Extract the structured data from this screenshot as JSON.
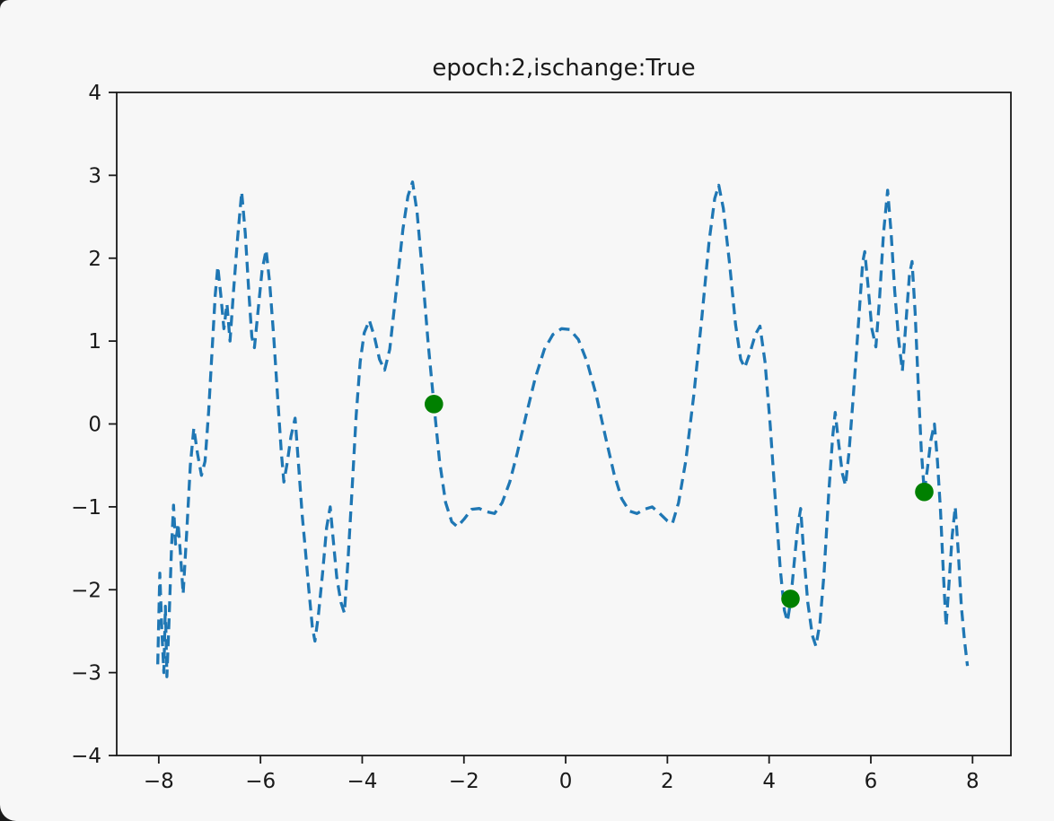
{
  "window": {
    "background": "#f7f7f7",
    "corner_color": "#1b1b1b"
  },
  "chart_data": {
    "type": "line",
    "title": "epoch:2,ischange:True",
    "xlabel": "",
    "ylabel": "",
    "grid": false,
    "legend": null,
    "xlim": [
      -8.827,
      8.754
    ],
    "ylim": [
      -4,
      4
    ],
    "x_ticks": [
      -8,
      -6,
      -4,
      -2,
      0,
      2,
      4,
      6,
      8
    ],
    "y_ticks": [
      -4,
      -3,
      -2,
      -1,
      0,
      1,
      2,
      3,
      4
    ],
    "axis_color": "#1a1a1a",
    "series": [
      {
        "name": "model-prediction-curve",
        "style": "dashed-line",
        "color": "#1f77b4",
        "points": [
          [
            -8.02,
            -2.9
          ],
          [
            -7.98,
            -1.8
          ],
          [
            -7.94,
            -2.5
          ],
          [
            -7.9,
            -3.0
          ],
          [
            -7.87,
            -2.2
          ],
          [
            -7.84,
            -3.05
          ],
          [
            -7.8,
            -2.4
          ],
          [
            -7.75,
            -1.5
          ],
          [
            -7.71,
            -0.98
          ],
          [
            -7.67,
            -1.45
          ],
          [
            -7.62,
            -1.2
          ],
          [
            -7.57,
            -1.6
          ],
          [
            -7.52,
            -2.05
          ],
          [
            -7.45,
            -1.3
          ],
          [
            -7.38,
            -0.5
          ],
          [
            -7.31,
            -0.05
          ],
          [
            -7.24,
            -0.35
          ],
          [
            -7.16,
            -0.62
          ],
          [
            -7.09,
            -0.45
          ],
          [
            -7.02,
            0.15
          ],
          [
            -6.95,
            0.9
          ],
          [
            -6.89,
            1.55
          ],
          [
            -6.84,
            1.9
          ],
          [
            -6.78,
            1.55
          ],
          [
            -6.72,
            1.15
          ],
          [
            -6.66,
            1.45
          ],
          [
            -6.6,
            1.0
          ],
          [
            -6.53,
            1.6
          ],
          [
            -6.45,
            2.25
          ],
          [
            -6.37,
            2.8
          ],
          [
            -6.3,
            2.3
          ],
          [
            -6.23,
            1.6
          ],
          [
            -6.17,
            1.05
          ],
          [
            -6.12,
            0.92
          ],
          [
            -6.05,
            1.35
          ],
          [
            -5.97,
            1.85
          ],
          [
            -5.89,
            2.1
          ],
          [
            -5.82,
            1.7
          ],
          [
            -5.74,
            1.05
          ],
          [
            -5.66,
            0.3
          ],
          [
            -5.59,
            -0.35
          ],
          [
            -5.54,
            -0.7
          ],
          [
            -5.47,
            -0.45
          ],
          [
            -5.4,
            -0.15
          ],
          [
            -5.32,
            0.07
          ],
          [
            -5.25,
            -0.5
          ],
          [
            -5.18,
            -1.1
          ],
          [
            -5.12,
            -1.5
          ],
          [
            -5.05,
            -2.0
          ],
          [
            -4.98,
            -2.45
          ],
          [
            -4.93,
            -2.62
          ],
          [
            -4.86,
            -2.3
          ],
          [
            -4.78,
            -1.8
          ],
          [
            -4.7,
            -1.25
          ],
          [
            -4.63,
            -1.0
          ],
          [
            -4.57,
            -1.4
          ],
          [
            -4.5,
            -1.85
          ],
          [
            -4.42,
            -2.15
          ],
          [
            -4.35,
            -2.28
          ],
          [
            -4.28,
            -1.65
          ],
          [
            -4.2,
            -0.8
          ],
          [
            -4.12,
            0.1
          ],
          [
            -4.04,
            0.75
          ],
          [
            -3.96,
            1.1
          ],
          [
            -3.86,
            1.25
          ],
          [
            -3.76,
            1.05
          ],
          [
            -3.66,
            0.78
          ],
          [
            -3.56,
            0.65
          ],
          [
            -3.46,
            0.9
          ],
          [
            -3.34,
            1.55
          ],
          [
            -3.2,
            2.35
          ],
          [
            -3.1,
            2.75
          ],
          [
            -3.01,
            2.92
          ],
          [
            -2.92,
            2.55
          ],
          [
            -2.82,
            1.85
          ],
          [
            -2.7,
            0.95
          ],
          [
            -2.59,
            0.24
          ],
          [
            -2.48,
            -0.45
          ],
          [
            -2.36,
            -0.95
          ],
          [
            -2.24,
            -1.18
          ],
          [
            -2.13,
            -1.24
          ],
          [
            -2.0,
            -1.15
          ],
          [
            -1.85,
            -1.03
          ],
          [
            -1.7,
            -1.02
          ],
          [
            -1.55,
            -1.06
          ],
          [
            -1.4,
            -1.08
          ],
          [
            -1.25,
            -0.95
          ],
          [
            -1.1,
            -0.7
          ],
          [
            -0.95,
            -0.35
          ],
          [
            -0.78,
            0.1
          ],
          [
            -0.6,
            0.55
          ],
          [
            -0.42,
            0.9
          ],
          [
            -0.25,
            1.08
          ],
          [
            -0.08,
            1.15
          ],
          [
            0.08,
            1.14
          ],
          [
            0.25,
            1.02
          ],
          [
            0.42,
            0.75
          ],
          [
            0.6,
            0.35
          ],
          [
            0.78,
            -0.15
          ],
          [
            0.95,
            -0.6
          ],
          [
            1.1,
            -0.9
          ],
          [
            1.25,
            -1.05
          ],
          [
            1.4,
            -1.08
          ],
          [
            1.55,
            -1.03
          ],
          [
            1.7,
            -1.0
          ],
          [
            1.85,
            -1.08
          ],
          [
            2.0,
            -1.17
          ],
          [
            2.1,
            -1.2
          ],
          [
            2.22,
            -0.95
          ],
          [
            2.36,
            -0.45
          ],
          [
            2.52,
            0.35
          ],
          [
            2.68,
            1.3
          ],
          [
            2.82,
            2.2
          ],
          [
            2.93,
            2.72
          ],
          [
            3.01,
            2.88
          ],
          [
            3.1,
            2.6
          ],
          [
            3.22,
            1.95
          ],
          [
            3.34,
            1.2
          ],
          [
            3.44,
            0.78
          ],
          [
            3.52,
            0.68
          ],
          [
            3.62,
            0.85
          ],
          [
            3.73,
            1.08
          ],
          [
            3.82,
            1.18
          ],
          [
            3.92,
            0.75
          ],
          [
            4.02,
            0.0
          ],
          [
            4.12,
            -0.9
          ],
          [
            4.22,
            -1.75
          ],
          [
            4.3,
            -2.25
          ],
          [
            4.36,
            -2.38
          ],
          [
            4.42,
            -2.15
          ],
          [
            4.49,
            -1.7
          ],
          [
            4.56,
            -1.25
          ],
          [
            4.62,
            -1.02
          ],
          [
            4.68,
            -1.55
          ],
          [
            4.76,
            -2.15
          ],
          [
            4.85,
            -2.55
          ],
          [
            4.92,
            -2.68
          ],
          [
            5.0,
            -2.4
          ],
          [
            5.08,
            -1.8
          ],
          [
            5.17,
            -0.85
          ],
          [
            5.25,
            -0.15
          ],
          [
            5.3,
            0.14
          ],
          [
            5.37,
            -0.25
          ],
          [
            5.44,
            -0.6
          ],
          [
            5.5,
            -0.74
          ],
          [
            5.57,
            -0.35
          ],
          [
            5.65,
            0.3
          ],
          [
            5.75,
            1.15
          ],
          [
            5.84,
            1.95
          ],
          [
            5.88,
            2.08
          ],
          [
            5.94,
            1.7
          ],
          [
            6.02,
            1.15
          ],
          [
            6.1,
            0.93
          ],
          [
            6.17,
            1.5
          ],
          [
            6.25,
            2.3
          ],
          [
            6.33,
            2.82
          ],
          [
            6.4,
            2.3
          ],
          [
            6.47,
            1.6
          ],
          [
            6.55,
            1.0
          ],
          [
            6.62,
            0.64
          ],
          [
            6.7,
            1.3
          ],
          [
            6.76,
            1.8
          ],
          [
            6.81,
            1.96
          ],
          [
            6.87,
            1.35
          ],
          [
            6.93,
            0.5
          ],
          [
            6.99,
            -0.3
          ],
          [
            7.05,
            -0.82
          ],
          [
            7.11,
            -0.55
          ],
          [
            7.18,
            -0.2
          ],
          [
            7.25,
            0.0
          ],
          [
            7.31,
            -0.45
          ],
          [
            7.37,
            -1.05
          ],
          [
            7.43,
            -1.85
          ],
          [
            7.48,
            -2.44
          ],
          [
            7.54,
            -1.9
          ],
          [
            7.6,
            -1.35
          ],
          [
            7.66,
            -1.0
          ],
          [
            7.72,
            -1.55
          ],
          [
            7.78,
            -2.2
          ],
          [
            7.84,
            -2.6
          ],
          [
            7.9,
            -2.92
          ]
        ]
      },
      {
        "name": "highlighted-sample-points",
        "style": "scatter",
        "color": "#008000",
        "points": [
          [
            -2.59,
            0.24
          ],
          [
            4.42,
            -2.11
          ],
          [
            7.05,
            -0.82
          ]
        ]
      }
    ]
  }
}
